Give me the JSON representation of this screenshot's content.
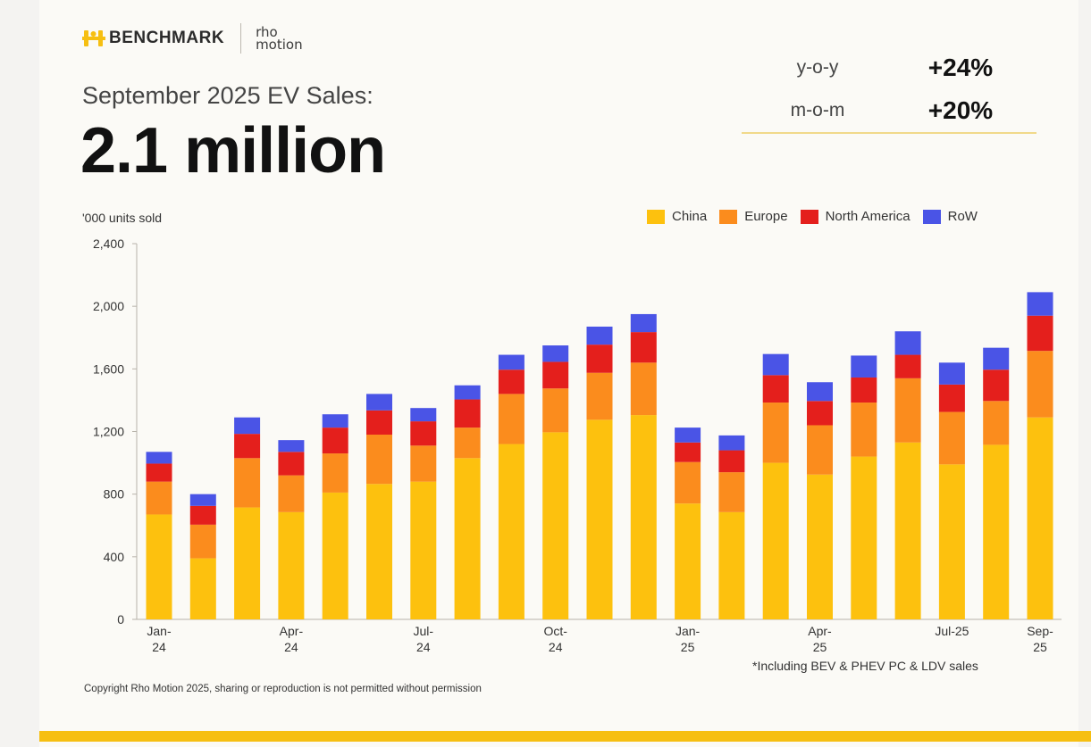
{
  "brand": {
    "name": "BENCHMARK",
    "partner_line1": "rho",
    "partner_line2": "motion"
  },
  "header": {
    "subtitle": "September 2025 EV Sales:",
    "headline": "2.1 million"
  },
  "stats": [
    {
      "label": "y-o-y",
      "value": "+24%"
    },
    {
      "label": "m-o-m",
      "value": "+20%"
    }
  ],
  "colors": {
    "accent": "#f6bf12",
    "china": "#fdc10e",
    "europe": "#fb8c1d",
    "north_america": "#e41f1c",
    "row": "#4a54e6"
  },
  "footnote": "*Including BEV & PHEV PC & LDV sales",
  "copyright": "Copyright Rho Motion 2025, sharing or reproduction is not permitted without permission",
  "chart_data": {
    "type": "bar",
    "stacked": true,
    "ylabel": "'000 units sold",
    "ylim": [
      0,
      2400
    ],
    "yticks": [
      0,
      400,
      800,
      1200,
      1600,
      2000,
      2400
    ],
    "ytick_labels": [
      "0",
      "400",
      "800",
      "1,200",
      "1,600",
      "2,000",
      "2,400"
    ],
    "grid": false,
    "legend_position": "top-right",
    "categories": [
      "Jan-24",
      "Feb-24",
      "Mar-24",
      "Apr-24",
      "May-24",
      "Jun-24",
      "Jul-24",
      "Aug-24",
      "Sep-24",
      "Oct-24",
      "Nov-24",
      "Dec-24",
      "Jan-25",
      "Feb-25",
      "Mar-25",
      "Apr-25",
      "May-25",
      "Jun-25",
      "Jul-25",
      "Aug-25",
      "Sep-25"
    ],
    "xtick_labels": [
      {
        "index": 0,
        "line1": "Jan-",
        "line2": "24"
      },
      {
        "index": 3,
        "line1": "Apr-",
        "line2": "24"
      },
      {
        "index": 6,
        "line1": "Jul-",
        "line2": "24"
      },
      {
        "index": 9,
        "line1": "Oct-",
        "line2": "24"
      },
      {
        "index": 12,
        "line1": "Jan-",
        "line2": "25"
      },
      {
        "index": 15,
        "line1": "Apr-",
        "line2": "25"
      },
      {
        "index": 18,
        "line1": "Jul-25",
        "line2": ""
      },
      {
        "index": 20,
        "line1": "Sep-",
        "line2": "25"
      }
    ],
    "series": [
      {
        "name": "China",
        "color": "#fdc10e",
        "values": [
          670,
          390,
          715,
          685,
          810,
          865,
          880,
          1030,
          1120,
          1195,
          1275,
          1305,
          740,
          685,
          1000,
          925,
          1040,
          1130,
          990,
          1115,
          1290
        ]
      },
      {
        "name": "Europe",
        "color": "#fb8c1d",
        "values": [
          210,
          215,
          315,
          235,
          250,
          315,
          230,
          195,
          320,
          280,
          300,
          335,
          265,
          255,
          385,
          315,
          345,
          410,
          335,
          280,
          425
        ]
      },
      {
        "name": "North America",
        "color": "#e41f1c",
        "values": [
          115,
          120,
          155,
          150,
          165,
          155,
          155,
          180,
          155,
          170,
          180,
          195,
          125,
          140,
          175,
          155,
          160,
          150,
          175,
          200,
          225
        ]
      },
      {
        "name": "RoW",
        "color": "#4a54e6",
        "values": [
          75,
          75,
          105,
          75,
          85,
          105,
          85,
          90,
          95,
          105,
          115,
          115,
          95,
          95,
          135,
          120,
          140,
          150,
          140,
          140,
          150
        ]
      }
    ]
  }
}
